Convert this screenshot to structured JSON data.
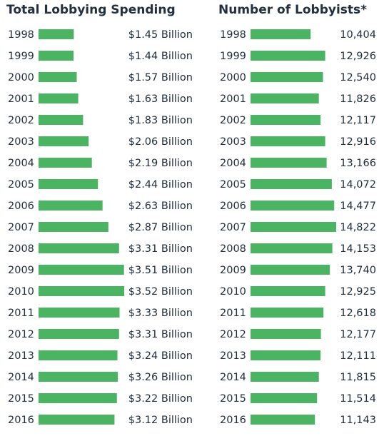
{
  "colors": {
    "bar": "#4bb463",
    "text": "#1f2d3d"
  },
  "chart_data": [
    {
      "type": "bar",
      "orientation": "horizontal",
      "title": "Total Lobbying Spending",
      "categories": [
        "1998",
        "1999",
        "2000",
        "2001",
        "2002",
        "2003",
        "2004",
        "2005",
        "2006",
        "2007",
        "2008",
        "2009",
        "2010",
        "2011",
        "2012",
        "2013",
        "2014",
        "2015",
        "2016"
      ],
      "values": [
        1.45,
        1.44,
        1.57,
        1.63,
        1.83,
        2.06,
        2.19,
        2.44,
        2.63,
        2.87,
        3.31,
        3.51,
        3.52,
        3.33,
        3.31,
        3.24,
        3.26,
        3.22,
        3.12
      ],
      "data_labels": [
        "$1.45 Billion",
        "$1.44 Billion",
        "$1.57 Billion",
        "$1.63 Billion",
        "$1.83 Billion",
        "$2.06 Billion",
        "$2.19 Billion",
        "$2.44 Billion",
        "$2.63 Billion",
        "$2.87 Billion",
        "$3.31 Billion",
        "$3.51 Billion",
        "$3.52 Billion",
        "$3.33 Billion",
        "$3.31 Billion",
        "$3.24 Billion",
        "$3.26 Billion",
        "$3.22 Billion",
        "$3.12 Billion"
      ],
      "xlim": [
        0,
        3.52
      ],
      "grid": false
    },
    {
      "type": "bar",
      "orientation": "horizontal",
      "title": "Number of Lobbyists*",
      "categories": [
        "1998",
        "1999",
        "2000",
        "2001",
        "2002",
        "2003",
        "2004",
        "2005",
        "2006",
        "2007",
        "2008",
        "2009",
        "2010",
        "2011",
        "2012",
        "2013",
        "2014",
        "2015",
        "2016"
      ],
      "values": [
        10404,
        12926,
        12540,
        11826,
        12117,
        12916,
        13166,
        14072,
        14477,
        14822,
        14153,
        13740,
        12925,
        12618,
        12177,
        12111,
        11815,
        11514,
        11143
      ],
      "data_labels": [
        "10,404",
        "12,926",
        "12,540",
        "11,826",
        "12,117",
        "12,916",
        "13,166",
        "14,072",
        "14,477",
        "14,822",
        "14,153",
        "13,740",
        "12,925",
        "12,618",
        "12,177",
        "12,111",
        "11,815",
        "11,514",
        "11,143"
      ],
      "xlim": [
        0,
        14822
      ],
      "grid": false
    }
  ]
}
